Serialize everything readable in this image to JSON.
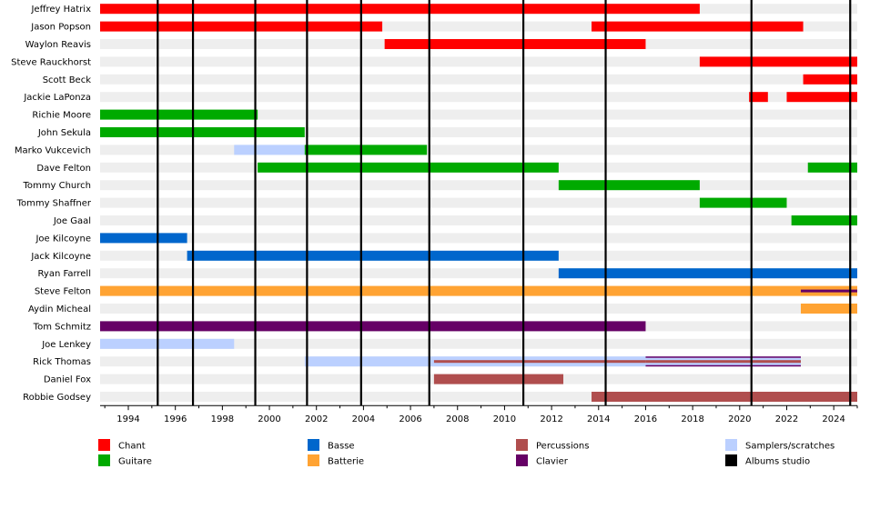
{
  "chart_data": {
    "type": "timeline",
    "x_range": [
      1992.8,
      2025.0
    ],
    "x_ticks": [
      1994,
      1996,
      1998,
      2000,
      2002,
      2004,
      2006,
      2008,
      2010,
      2012,
      2014,
      2016,
      2018,
      2020,
      2022,
      2024
    ],
    "colors": {
      "Chant": "#ff0000",
      "Guitare": "#00aa00",
      "Basse": "#0066cc",
      "Batterie": "#ffa333",
      "Percussions": "#b04e4e",
      "Clavier": "#660066",
      "Samplers/scratches": "#bbd0ff",
      "Albums studio": "#000000"
    },
    "albums": [
      1995.25,
      1996.75,
      1999.4,
      2001.6,
      2003.9,
      2006.8,
      2010.8,
      2014.3,
      2020.5,
      2024.7
    ],
    "members": [
      {
        "name": "Jeffrey Hatrix",
        "bars": [
          {
            "role": "Chant",
            "start": 1992.8,
            "end": 2018.3
          }
        ]
      },
      {
        "name": "Jason Popson",
        "bars": [
          {
            "role": "Chant",
            "start": 1992.8,
            "end": 2004.8
          },
          {
            "role": "Chant",
            "start": 2013.7,
            "end": 2022.7
          }
        ]
      },
      {
        "name": "Waylon Reavis",
        "bars": [
          {
            "role": "Chant",
            "start": 2004.9,
            "end": 2016.0
          }
        ]
      },
      {
        "name": "Steve Rauckhorst",
        "bars": [
          {
            "role": "Chant",
            "start": 2018.3,
            "end": 2025.0
          }
        ]
      },
      {
        "name": "Scott Beck",
        "bars": [
          {
            "role": "Chant",
            "start": 2022.7,
            "end": 2025.0
          }
        ]
      },
      {
        "name": "Jackie LaPonza",
        "bars": [
          {
            "role": "Chant",
            "start": 2020.4,
            "end": 2021.2
          },
          {
            "role": "Chant",
            "start": 2022.0,
            "end": 2025.0
          }
        ]
      },
      {
        "name": "Richie Moore",
        "bars": [
          {
            "role": "Guitare",
            "start": 1992.8,
            "end": 1999.5
          }
        ]
      },
      {
        "name": "John Sekula",
        "bars": [
          {
            "role": "Guitare",
            "start": 1992.8,
            "end": 2001.5
          }
        ]
      },
      {
        "name": "Marko Vukcevich",
        "bars": [
          {
            "role": "Samplers/scratches",
            "start": 1998.5,
            "end": 2001.5
          },
          {
            "role": "Guitare",
            "start": 2001.5,
            "end": 2006.7
          }
        ]
      },
      {
        "name": "Dave Felton",
        "bars": [
          {
            "role": "Guitare",
            "start": 1999.5,
            "end": 2012.3
          },
          {
            "role": "Guitare",
            "start": 2022.9,
            "end": 2025.0
          }
        ]
      },
      {
        "name": "Tommy Church",
        "bars": [
          {
            "role": "Guitare",
            "start": 2012.3,
            "end": 2018.3
          }
        ]
      },
      {
        "name": "Tommy Shaffner",
        "bars": [
          {
            "role": "Guitare",
            "start": 2018.3,
            "end": 2022.0
          }
        ]
      },
      {
        "name": "Joe Gaal",
        "bars": [
          {
            "role": "Guitare",
            "start": 2022.2,
            "end": 2025.0
          }
        ]
      },
      {
        "name": "Joe Kilcoyne",
        "bars": [
          {
            "role": "Basse",
            "start": 1992.8,
            "end": 1996.5
          }
        ]
      },
      {
        "name": "Jack Kilcoyne",
        "bars": [
          {
            "role": "Basse",
            "start": 1996.5,
            "end": 2012.3
          }
        ]
      },
      {
        "name": "Ryan Farrell",
        "bars": [
          {
            "role": "Basse",
            "start": 2012.3,
            "end": 2025.0
          }
        ]
      },
      {
        "name": "Steve Felton",
        "bars": [
          {
            "role": "Batterie",
            "start": 1992.8,
            "end": 2022.6
          },
          {
            "role": "Batterie",
            "start": 2022.6,
            "end": 2025.0,
            "stripe": "Clavier"
          }
        ]
      },
      {
        "name": "Aydin Micheal",
        "bars": [
          {
            "role": "Batterie",
            "start": 2022.6,
            "end": 2025.0
          }
        ]
      },
      {
        "name": "Tom Schmitz",
        "bars": [
          {
            "role": "Clavier",
            "start": 1992.8,
            "end": 2016.0
          }
        ]
      },
      {
        "name": "Joe Lenkey",
        "bars": [
          {
            "role": "Samplers/scratches",
            "start": 1992.8,
            "end": 1998.5
          }
        ]
      },
      {
        "name": "Rick Thomas",
        "bars": [
          {
            "role": "Samplers/scratches",
            "start": 2001.5,
            "end": 2007.0
          },
          {
            "role": "Samplers/scratches",
            "start": 2007.0,
            "end": 2016.0,
            "stripe": "Percussions"
          },
          {
            "role": "Samplers/scratches",
            "start": 2016.0,
            "end": 2022.6,
            "stripe": "Percussions",
            "edge": "Clavier"
          }
        ]
      },
      {
        "name": "Daniel Fox",
        "bars": [
          {
            "role": "Percussions",
            "start": 2007.0,
            "end": 2012.5
          }
        ]
      },
      {
        "name": "Robbie Godsey",
        "bars": [
          {
            "role": "Percussions",
            "start": 2013.7,
            "end": 2025.0
          }
        ]
      }
    ],
    "legend": {
      "placement": "bottom",
      "columns": [
        [
          "Chant",
          "Guitare"
        ],
        [
          "Basse",
          "Batterie"
        ],
        [
          "Percussions",
          "Clavier"
        ],
        [
          "Samplers/scratches",
          "Albums studio"
        ]
      ]
    }
  }
}
